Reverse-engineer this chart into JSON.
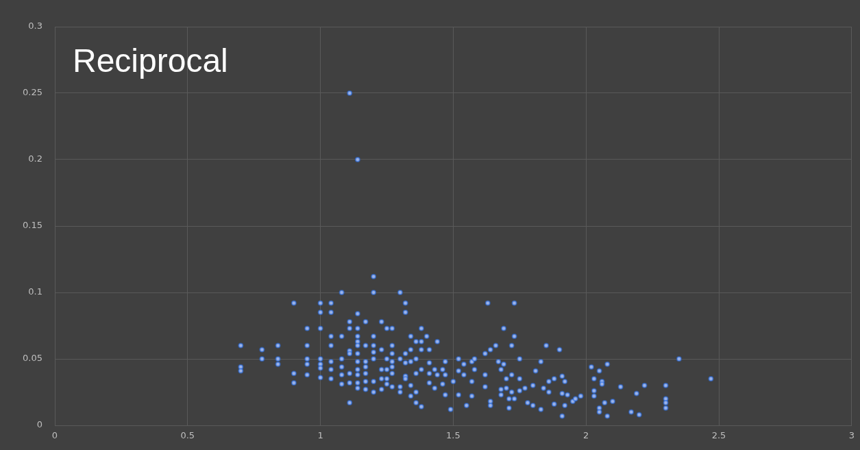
{
  "chart_data": {
    "type": "scatter",
    "title": "Reciprocal",
    "x": [
      1.11,
      1.14,
      1.2,
      1.2,
      1.3,
      1.08,
      0.9,
      1.0,
      1.04,
      1.0,
      1.04,
      1.32,
      1.32,
      1.63,
      1.73,
      0.7,
      0.7,
      0.7,
      0.78,
      0.78,
      0.84,
      0.84,
      0.84,
      0.9,
      0.9,
      0.95,
      0.95,
      0.95,
      0.95,
      0.95,
      1.0,
      1.0,
      1.0,
      1.0,
      1.0,
      1.04,
      1.04,
      1.04,
      1.04,
      1.04,
      1.08,
      1.08,
      1.08,
      1.08,
      1.08,
      1.11,
      1.11,
      1.11,
      1.11,
      1.11,
      1.11,
      1.11,
      1.14,
      1.14,
      1.14,
      1.14,
      1.14,
      1.14,
      1.14,
      1.14,
      1.14,
      1.14,
      1.14,
      1.17,
      1.17,
      1.17,
      1.17,
      1.17,
      1.17,
      1.17,
      1.2,
      1.2,
      1.2,
      1.2,
      1.2,
      1.2,
      1.23,
      1.23,
      1.23,
      1.23,
      1.23,
      1.25,
      1.25,
      1.25,
      1.25,
      1.25,
      1.27,
      1.27,
      1.27,
      1.27,
      1.27,
      1.27,
      1.27,
      1.3,
      1.3,
      1.3,
      1.32,
      1.32,
      1.32,
      1.32,
      1.34,
      1.34,
      1.34,
      1.34,
      1.34,
      1.36,
      1.36,
      1.36,
      1.36,
      1.36,
      1.38,
      1.38,
      1.38,
      1.38,
      1.38,
      1.4,
      1.41,
      1.41,
      1.41,
      1.41,
      1.44,
      1.43,
      1.43,
      1.44,
      1.46,
      1.46,
      1.47,
      1.47,
      1.47,
      1.49,
      1.5,
      1.52,
      1.52,
      1.52,
      1.54,
      1.54,
      1.55,
      1.57,
      1.57,
      1.57,
      1.69,
      1.73,
      1.64,
      1.66,
      1.62,
      1.72,
      1.75,
      1.85,
      1.9,
      1.83,
      1.67,
      1.69,
      1.68,
      1.81,
      1.58,
      1.58,
      1.62,
      1.72,
      1.7,
      1.75,
      1.62,
      1.68,
      1.68,
      1.7,
      1.72,
      1.75,
      1.77,
      1.73,
      1.71,
      1.64,
      1.64,
      1.71,
      1.8,
      1.78,
      1.8,
      1.83,
      1.84,
      1.86,
      1.88,
      1.86,
      1.88,
      1.91,
      1.92,
      1.91,
      1.93,
      1.92,
      1.91,
      1.95,
      1.96,
      1.98,
      2.02,
      2.05,
      2.08,
      2.03,
      2.06,
      2.06,
      2.03,
      2.03,
      2.05,
      2.05,
      2.08,
      2.07,
      2.1,
      2.13,
      2.19,
      2.22,
      2.17,
      2.2,
      2.3,
      2.3,
      2.3,
      2.3,
      2.35,
      2.47
    ],
    "values": [
      0.25,
      0.2,
      0.112,
      0.1,
      0.1,
      0.1,
      0.092,
      0.092,
      0.092,
      0.085,
      0.085,
      0.092,
      0.085,
      0.092,
      0.092,
      0.06,
      0.044,
      0.041,
      0.057,
      0.05,
      0.06,
      0.05,
      0.046,
      0.039,
      0.032,
      0.073,
      0.06,
      0.05,
      0.046,
      0.038,
      0.073,
      0.05,
      0.046,
      0.043,
      0.036,
      0.067,
      0.06,
      0.048,
      0.042,
      0.035,
      0.067,
      0.05,
      0.044,
      0.038,
      0.031,
      0.078,
      0.073,
      0.056,
      0.054,
      0.039,
      0.032,
      0.017,
      0.084,
      0.073,
      0.067,
      0.063,
      0.06,
      0.054,
      0.048,
      0.042,
      0.038,
      0.032,
      0.028,
      0.078,
      0.06,
      0.048,
      0.044,
      0.039,
      0.033,
      0.027,
      0.067,
      0.06,
      0.055,
      0.05,
      0.033,
      0.025,
      0.078,
      0.057,
      0.042,
      0.035,
      0.027,
      0.073,
      0.05,
      0.042,
      0.035,
      0.031,
      0.073,
      0.06,
      0.054,
      0.048,
      0.044,
      0.039,
      0.029,
      0.05,
      0.029,
      0.025,
      0.054,
      0.047,
      0.037,
      0.035,
      0.067,
      0.057,
      0.048,
      0.03,
      0.022,
      0.063,
      0.05,
      0.039,
      0.025,
      0.017,
      0.073,
      0.063,
      0.057,
      0.042,
      0.014,
      0.067,
      0.057,
      0.047,
      0.039,
      0.032,
      0.063,
      0.042,
      0.028,
      0.038,
      0.042,
      0.031,
      0.048,
      0.038,
      0.023,
      0.012,
      0.033,
      0.05,
      0.041,
      0.023,
      0.046,
      0.038,
      0.015,
      0.048,
      0.022,
      0.033,
      0.073,
      0.067,
      0.057,
      0.06,
      0.054,
      0.06,
      0.05,
      0.06,
      0.057,
      0.048,
      0.048,
      0.046,
      0.042,
      0.041,
      0.05,
      0.042,
      0.038,
      0.038,
      0.035,
      0.035,
      0.029,
      0.027,
      0.023,
      0.028,
      0.025,
      0.026,
      0.028,
      0.02,
      0.02,
      0.018,
      0.015,
      0.013,
      0.03,
      0.017,
      0.015,
      0.012,
      0.028,
      0.033,
      0.035,
      0.025,
      0.016,
      0.037,
      0.033,
      0.024,
      0.023,
      0.015,
      0.007,
      0.018,
      0.02,
      0.022,
      0.044,
      0.041,
      0.046,
      0.035,
      0.033,
      0.031,
      0.026,
      0.022,
      0.013,
      0.01,
      0.007,
      0.017,
      0.018,
      0.029,
      0.024,
      0.03,
      0.01,
      0.008,
      0.03,
      0.02,
      0.017,
      0.013,
      0.05,
      0.035
    ],
    "color": "#9db4e8",
    "marker": "circle",
    "grid": true,
    "legend": false,
    "xlim": [
      0,
      3
    ],
    "xticks": [
      0,
      0.5,
      1,
      1.5,
      2,
      2.5,
      3
    ],
    "ylim": [
      0,
      0.3
    ],
    "yticks": [
      0,
      0.05,
      0.1,
      0.15,
      0.2,
      0.25,
      0.3
    ]
  }
}
